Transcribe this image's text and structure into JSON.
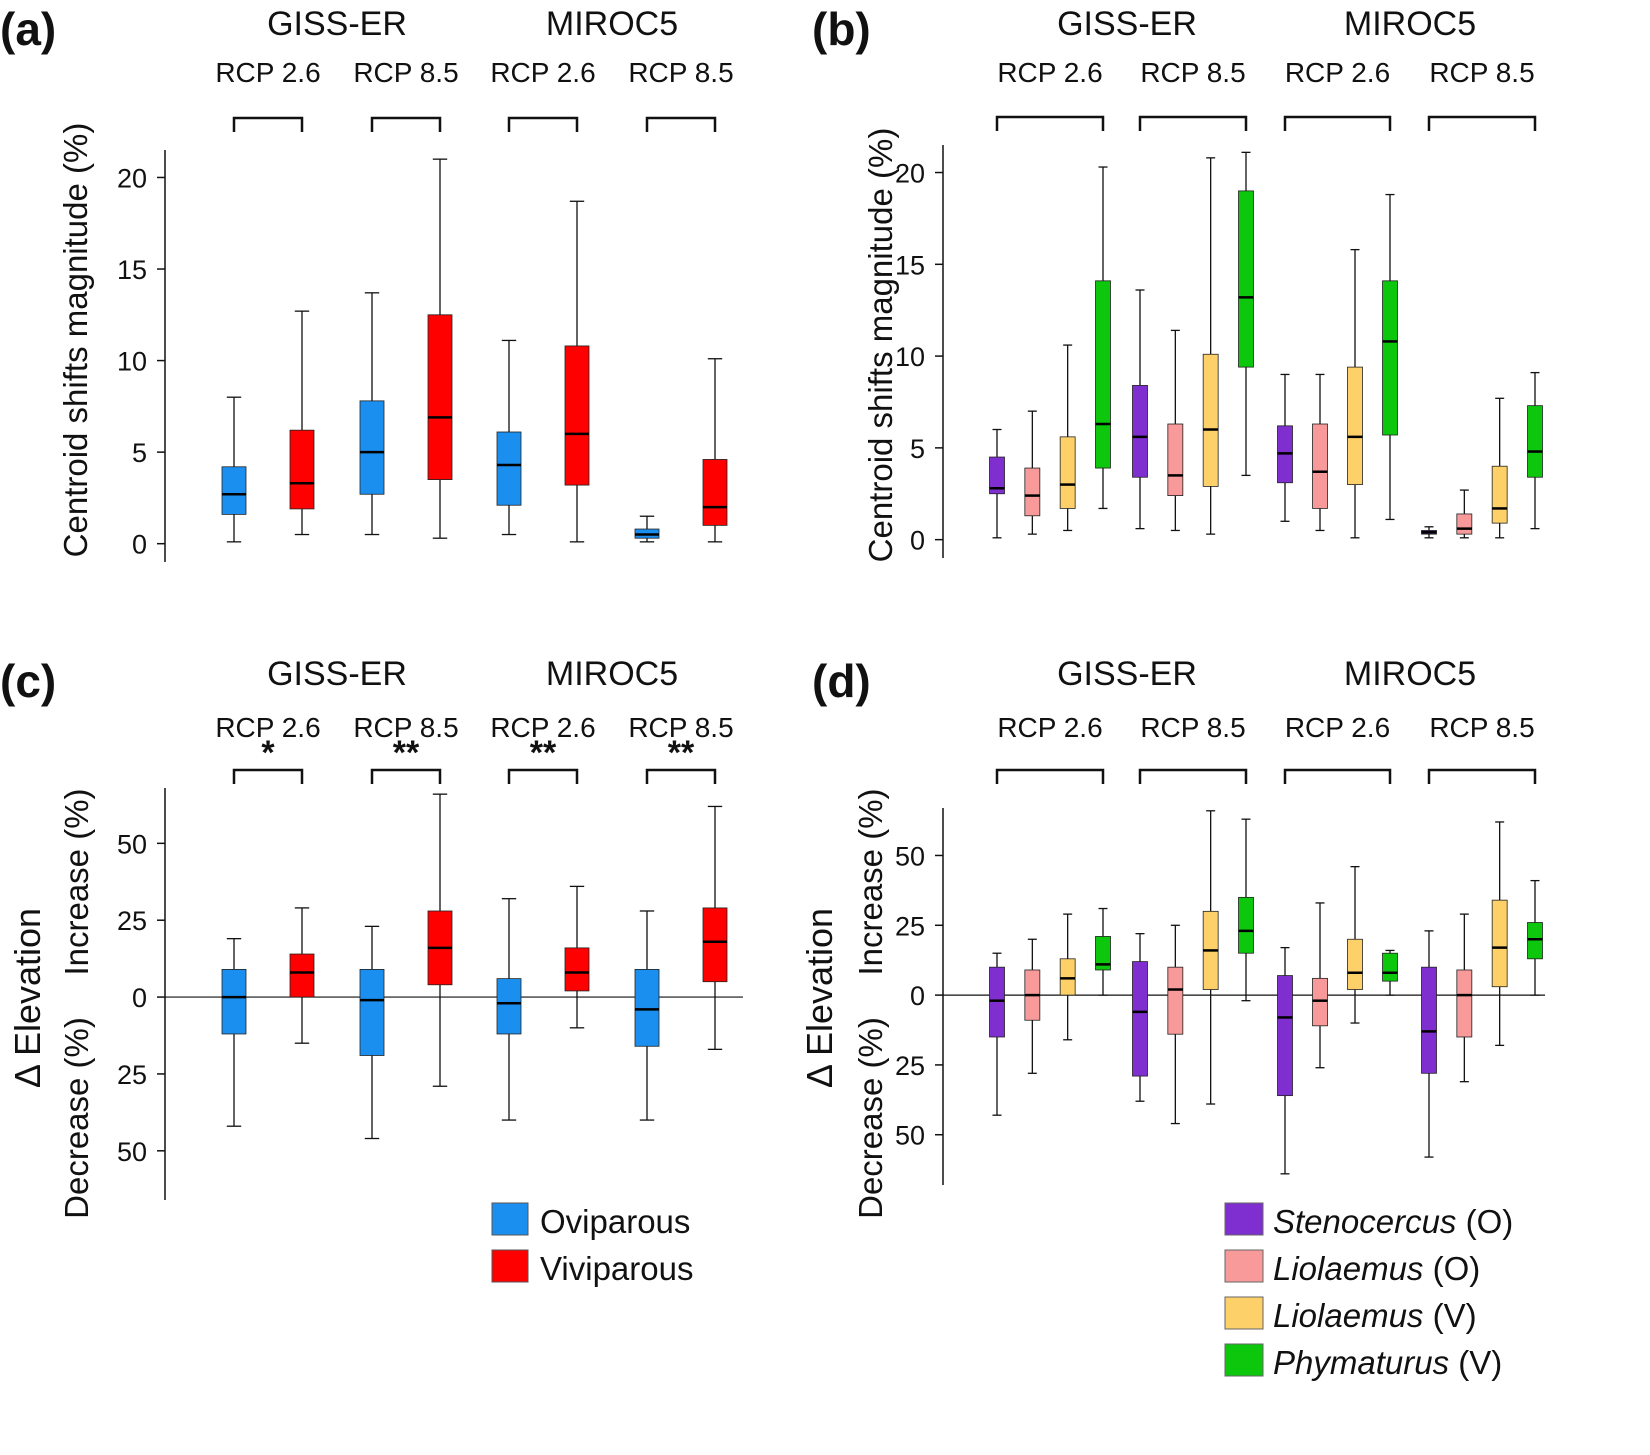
{
  "colors": {
    "Oviparous": "#1b8ff0",
    "Viviparous": "#ff0000",
    "Stenocercus (O)": "#7f2fd0",
    "Liolaemus (O)": "#f79a99",
    "Liolaemus (V)": "#fdd06a",
    "Phymaturus (V)": "#0cc70c"
  },
  "chart_data": [
    {
      "panel": "(a)",
      "type": "boxplot",
      "models": [
        {
          "name": "GISS-ER",
          "scenarios": [
            "RCP 2.6",
            "RCP 8.5"
          ]
        },
        {
          "name": "MIROC5",
          "scenarios": [
            "RCP 2.6",
            "RCP 8.5"
          ]
        }
      ],
      "ylabel": "Centroid shifts magnitude (%)",
      "ylim": [
        -1,
        21.5
      ],
      "yticks": [
        "0",
        "5",
        "10",
        "15",
        "20"
      ],
      "series": [
        "Oviparous",
        "Viviparous"
      ],
      "groups": [
        {
          "model": "GISS-ER",
          "scenario": "RCP 2.6",
          "boxes": [
            {
              "series": "Oviparous",
              "min": 0.1,
              "q1": 1.6,
              "median": 2.7,
              "q3": 4.2,
              "max": 8.0
            },
            {
              "series": "Viviparous",
              "min": 0.5,
              "q1": 1.9,
              "median": 3.3,
              "q3": 6.2,
              "max": 12.7
            }
          ]
        },
        {
          "model": "GISS-ER",
          "scenario": "RCP 8.5",
          "boxes": [
            {
              "series": "Oviparous",
              "min": 0.5,
              "q1": 2.7,
              "median": 5.0,
              "q3": 7.8,
              "max": 13.7
            },
            {
              "series": "Viviparous",
              "min": 0.3,
              "q1": 3.5,
              "median": 6.9,
              "q3": 12.5,
              "max": 21.0
            }
          ]
        },
        {
          "model": "MIROC5",
          "scenario": "RCP 2.6",
          "boxes": [
            {
              "series": "Oviparous",
              "min": 0.5,
              "q1": 2.1,
              "median": 4.3,
              "q3": 6.1,
              "max": 11.1
            },
            {
              "series": "Viviparous",
              "min": 0.1,
              "q1": 3.2,
              "median": 6.0,
              "q3": 10.8,
              "max": 18.7
            }
          ]
        },
        {
          "model": "MIROC5",
          "scenario": "RCP 8.5",
          "boxes": [
            {
              "series": "Oviparous",
              "min": 0.1,
              "q1": 0.3,
              "median": 0.5,
              "q3": 0.8,
              "max": 1.5
            },
            {
              "series": "Viviparous",
              "min": 0.1,
              "q1": 1.0,
              "median": 2.0,
              "q3": 4.6,
              "max": 10.1
            }
          ]
        }
      ]
    },
    {
      "panel": "(b)",
      "type": "boxplot",
      "models": [
        {
          "name": "GISS-ER",
          "scenarios": [
            "RCP 2.6",
            "RCP 8.5"
          ]
        },
        {
          "name": "MIROC5",
          "scenarios": [
            "RCP 2.6",
            "RCP 8.5"
          ]
        }
      ],
      "ylabel": "Centroid shifts magnitude (%)",
      "ylim": [
        -1,
        21.5
      ],
      "yticks": [
        "0",
        "5",
        "10",
        "15",
        "20"
      ],
      "series": [
        "Stenocercus (O)",
        "Liolaemus (O)",
        "Liolaemus (V)",
        "Phymaturus (V)"
      ],
      "groups": [
        {
          "model": "GISS-ER",
          "scenario": "RCP 2.6",
          "boxes": [
            {
              "series": "Stenocercus (O)",
              "min": 0.1,
              "q1": 2.5,
              "median": 2.8,
              "q3": 4.5,
              "max": 6.0
            },
            {
              "series": "Liolaemus (O)",
              "min": 0.3,
              "q1": 1.3,
              "median": 2.4,
              "q3": 3.9,
              "max": 7.0
            },
            {
              "series": "Liolaemus (V)",
              "min": 0.5,
              "q1": 1.7,
              "median": 3.0,
              "q3": 5.6,
              "max": 10.6
            },
            {
              "series": "Phymaturus (V)",
              "min": 1.7,
              "q1": 3.9,
              "median": 6.3,
              "q3": 14.1,
              "max": 20.3
            }
          ]
        },
        {
          "model": "GISS-ER",
          "scenario": "RCP 8.5",
          "boxes": [
            {
              "series": "Stenocercus (O)",
              "min": 0.6,
              "q1": 3.4,
              "median": 5.6,
              "q3": 8.4,
              "max": 13.6
            },
            {
              "series": "Liolaemus (O)",
              "min": 0.5,
              "q1": 2.4,
              "median": 3.5,
              "q3": 6.3,
              "max": 11.4
            },
            {
              "series": "Liolaemus (V)",
              "min": 0.3,
              "q1": 2.9,
              "median": 6.0,
              "q3": 10.1,
              "max": 20.8
            },
            {
              "series": "Phymaturus (V)",
              "min": 3.5,
              "q1": 9.4,
              "median": 13.2,
              "q3": 19.0,
              "max": 21.1
            }
          ]
        },
        {
          "model": "MIROC5",
          "scenario": "RCP 2.6",
          "boxes": [
            {
              "series": "Stenocercus (O)",
              "min": 1.0,
              "q1": 3.1,
              "median": 4.7,
              "q3": 6.2,
              "max": 9.0
            },
            {
              "series": "Liolaemus (O)",
              "min": 0.5,
              "q1": 1.7,
              "median": 3.7,
              "q3": 6.3,
              "max": 9.0
            },
            {
              "series": "Liolaemus (V)",
              "min": 0.1,
              "q1": 3.0,
              "median": 5.6,
              "q3": 9.4,
              "max": 15.8
            },
            {
              "series": "Phymaturus (V)",
              "min": 1.1,
              "q1": 5.7,
              "median": 10.8,
              "q3": 14.1,
              "max": 18.8
            }
          ]
        },
        {
          "model": "MIROC5",
          "scenario": "RCP 8.5",
          "boxes": [
            {
              "series": "Stenocercus (O)",
              "min": 0.1,
              "q1": 0.3,
              "median": 0.4,
              "q3": 0.5,
              "max": 0.7
            },
            {
              "series": "Liolaemus (O)",
              "min": 0.1,
              "q1": 0.3,
              "median": 0.6,
              "q3": 1.4,
              "max": 2.7
            },
            {
              "series": "Liolaemus (V)",
              "min": 0.1,
              "q1": 0.9,
              "median": 1.7,
              "q3": 4.0,
              "max": 7.7
            },
            {
              "series": "Phymaturus (V)",
              "min": 0.6,
              "q1": 3.4,
              "median": 4.8,
              "q3": 7.3,
              "max": 9.1
            }
          ]
        }
      ]
    },
    {
      "panel": "(c)",
      "type": "boxplot",
      "models": [
        {
          "name": "GISS-ER",
          "scenarios": [
            "RCP 2.6",
            "RCP 8.5"
          ]
        },
        {
          "name": "MIROC5",
          "scenarios": [
            "RCP 2.6",
            "RCP 8.5"
          ]
        }
      ],
      "ylabel": "Δ Elevation",
      "ylabel_upper": "Increase (%)",
      "ylabel_lower": "Decrease (%)",
      "ylim": [
        -66,
        68
      ],
      "yticks": [
        {
          "value": 50,
          "label": "50"
        },
        {
          "value": 25,
          "label": "25"
        },
        {
          "value": 0,
          "label": "0"
        },
        {
          "value": -25,
          "label": "25"
        },
        {
          "value": -50,
          "label": "50"
        }
      ],
      "zero_line": true,
      "significance": [
        "*",
        "**",
        "**",
        "**"
      ],
      "series": [
        "Oviparous",
        "Viviparous"
      ],
      "legend": {
        "position": "bottom-right",
        "entries": [
          "Oviparous",
          "Viviparous"
        ]
      },
      "groups": [
        {
          "model": "GISS-ER",
          "scenario": "RCP 2.6",
          "boxes": [
            {
              "series": "Oviparous",
              "min": -42,
              "q1": -12,
              "median": 0,
              "q3": 9,
              "max": 19
            },
            {
              "series": "Viviparous",
              "min": -15,
              "q1": 0,
              "median": 8,
              "q3": 14,
              "max": 29
            }
          ]
        },
        {
          "model": "GISS-ER",
          "scenario": "RCP 8.5",
          "boxes": [
            {
              "series": "Oviparous",
              "min": -46,
              "q1": -19,
              "median": -1,
              "q3": 9,
              "max": 23
            },
            {
              "series": "Viviparous",
              "min": -29,
              "q1": 4,
              "median": 16,
              "q3": 28,
              "max": 66
            }
          ]
        },
        {
          "model": "MIROC5",
          "scenario": "RCP 2.6",
          "boxes": [
            {
              "series": "Oviparous",
              "min": -40,
              "q1": -12,
              "median": -2,
              "q3": 6,
              "max": 32
            },
            {
              "series": "Viviparous",
              "min": -10,
              "q1": 2,
              "median": 8,
              "q3": 16,
              "max": 36
            }
          ]
        },
        {
          "model": "MIROC5",
          "scenario": "RCP 8.5",
          "boxes": [
            {
              "series": "Oviparous",
              "min": -40,
              "q1": -16,
              "median": -4,
              "q3": 9,
              "max": 28
            },
            {
              "series": "Viviparous",
              "min": -17,
              "q1": 5,
              "median": 18,
              "q3": 29,
              "max": 62
            }
          ]
        }
      ]
    },
    {
      "panel": "(d)",
      "type": "boxplot",
      "models": [
        {
          "name": "GISS-ER",
          "scenarios": [
            "RCP 2.6",
            "RCP 8.5"
          ]
        },
        {
          "name": "MIROC5",
          "scenarios": [
            "RCP 2.6",
            "RCP 8.5"
          ]
        }
      ],
      "ylabel": "Δ Elevation",
      "ylabel_upper": "Increase (%)",
      "ylabel_lower": "Decrease (%)",
      "ylim": [
        -68,
        67
      ],
      "yticks": [
        {
          "value": 50,
          "label": "50"
        },
        {
          "value": 25,
          "label": "25"
        },
        {
          "value": 0,
          "label": "0"
        },
        {
          "value": -25,
          "label": "25"
        },
        {
          "value": -50,
          "label": "50"
        }
      ],
      "zero_line": true,
      "series": [
        "Stenocercus (O)",
        "Liolaemus (O)",
        "Liolaemus (V)",
        "Phymaturus (V)"
      ],
      "legend": {
        "position": "bottom-right",
        "entries": [
          {
            "genus": "Stenocercus",
            "mode": "(O)",
            "series": "Stenocercus (O)"
          },
          {
            "genus": "Liolaemus",
            "mode": "(O)",
            "series": "Liolaemus (O)"
          },
          {
            "genus": "Liolaemus",
            "mode": "(V)",
            "series": "Liolaemus (V)"
          },
          {
            "genus": "Phymaturus",
            "mode": "(V)",
            "series": "Phymaturus (V)"
          }
        ]
      },
      "groups": [
        {
          "model": "GISS-ER",
          "scenario": "RCP 2.6",
          "boxes": [
            {
              "series": "Stenocercus (O)",
              "min": -43,
              "q1": -15,
              "median": -2,
              "q3": 10,
              "max": 15
            },
            {
              "series": "Liolaemus (O)",
              "min": -28,
              "q1": -9,
              "median": 0,
              "q3": 9,
              "max": 20
            },
            {
              "series": "Liolaemus (V)",
              "min": -16,
              "q1": 0,
              "median": 6,
              "q3": 13,
              "max": 29
            },
            {
              "series": "Phymaturus (V)",
              "min": 0,
              "q1": 9,
              "median": 11,
              "q3": 21,
              "max": 31
            }
          ]
        },
        {
          "model": "GISS-ER",
          "scenario": "RCP 8.5",
          "boxes": [
            {
              "series": "Stenocercus (O)",
              "min": -38,
              "q1": -29,
              "median": -6,
              "q3": 12,
              "max": 22
            },
            {
              "series": "Liolaemus (O)",
              "min": -46,
              "q1": -14,
              "median": 2,
              "q3": 10,
              "max": 25
            },
            {
              "series": "Liolaemus (V)",
              "min": -39,
              "q1": 2,
              "median": 16,
              "q3": 30,
              "max": 66
            },
            {
              "series": "Phymaturus (V)",
              "min": -2,
              "q1": 15,
              "median": 23,
              "q3": 35,
              "max": 63
            }
          ]
        },
        {
          "model": "MIROC5",
          "scenario": "RCP 2.6",
          "boxes": [
            {
              "series": "Stenocercus (O)",
              "min": -64,
              "q1": -36,
              "median": -8,
              "q3": 7,
              "max": 17
            },
            {
              "series": "Liolaemus (O)",
              "min": -26,
              "q1": -11,
              "median": -2,
              "q3": 6,
              "max": 33
            },
            {
              "series": "Liolaemus (V)",
              "min": -10,
              "q1": 2,
              "median": 8,
              "q3": 20,
              "max": 46
            },
            {
              "series": "Phymaturus (V)",
              "min": 0,
              "q1": 5,
              "median": 8,
              "q3": 15,
              "max": 16
            }
          ]
        },
        {
          "model": "MIROC5",
          "scenario": "RCP 8.5",
          "boxes": [
            {
              "series": "Stenocercus (O)",
              "min": -58,
              "q1": -28,
              "median": -13,
              "q3": 10,
              "max": 23
            },
            {
              "series": "Liolaemus (O)",
              "min": -31,
              "q1": -15,
              "median": 0,
              "q3": 9,
              "max": 29
            },
            {
              "series": "Liolaemus (V)",
              "min": -18,
              "q1": 3,
              "median": 17,
              "q3": 34,
              "max": 62
            },
            {
              "series": "Phymaturus (V)",
              "min": 0,
              "q1": 13,
              "median": 20,
              "q3": 26,
              "max": 41
            }
          ]
        }
      ]
    }
  ]
}
